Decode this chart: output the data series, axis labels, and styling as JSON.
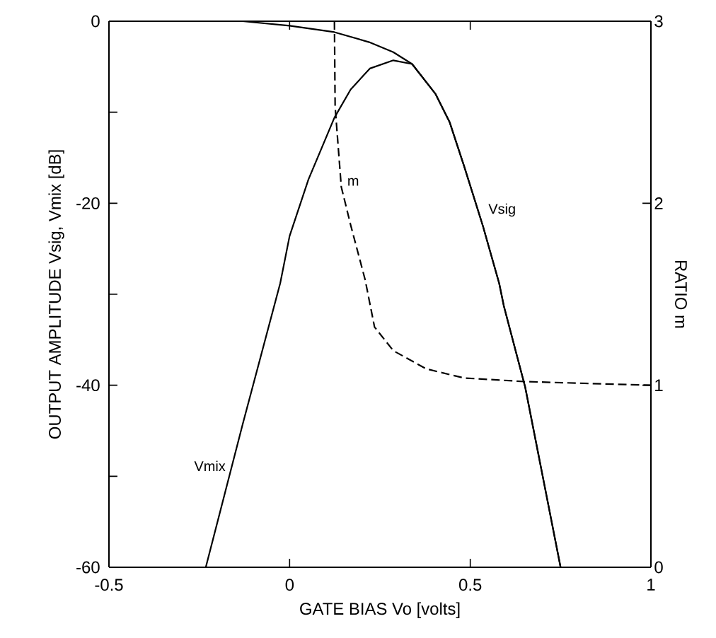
{
  "chart_data": {
    "type": "line",
    "xlabel": "GATE BIAS Vo [volts]",
    "ylabel": "OUTPUT AMPLITUDE Vsig, Vmix [dB]",
    "y2label": "RATIO m",
    "xlim": [
      -0.5,
      1
    ],
    "xticks": [
      -0.5,
      0,
      0.5,
      1
    ],
    "ylim": [
      -60,
      0
    ],
    "yticks": [
      0,
      {
        "value": -10,
        "label": null
      },
      -20,
      {
        "value": -30,
        "label": null
      },
      -40,
      {
        "value": -50,
        "label": null
      },
      -60
    ],
    "y2lim": [
      0,
      3
    ],
    "y2ticks": [
      0,
      1,
      2,
      3
    ],
    "series": [
      {
        "name": "Vsig",
        "color": "#000000",
        "line_style": "solid",
        "x": [
          -0.13,
          0,
          0.124,
          0.22,
          0.287,
          0.339,
          0.404,
          0.443,
          0.482,
          0.535,
          0.58,
          0.593,
          0.652,
          0.75
        ],
        "values": [
          0,
          -0.5,
          -1.2,
          -2.3,
          -3.4,
          -4.7,
          -8.0,
          -11.1,
          -15.8,
          -22.5,
          -28.8,
          -31.3,
          -40.2,
          -60
        ]
      },
      {
        "name": "Vmix",
        "color": "#000000",
        "line_style": "solid",
        "x": [
          -0.232,
          -0.13,
          -0.026,
          0,
          0.052,
          0.124,
          0.169,
          0.222,
          0.287,
          0.339,
          0.404,
          0.443,
          0.482,
          0.535,
          0.58,
          0.593,
          0.652,
          0.75
        ],
        "values": [
          -60,
          -44.3,
          -28.8,
          -23.6,
          -17.4,
          -10.6,
          -7.5,
          -5.2,
          -4.3,
          -4.7,
          -8.0,
          -11.1,
          -15.8,
          -22.5,
          -28.8,
          -31.3,
          -40.2,
          -60
        ]
      },
      {
        "name": "m",
        "color": "#000000",
        "line_style": "dashed",
        "axis": "y2",
        "x": [
          0.124,
          0.126,
          0.143,
          0.169,
          0.209,
          0.235,
          0.287,
          0.378,
          0.482,
          0.652,
          1.0
        ],
        "values": [
          3,
          2.53,
          2.09,
          1.88,
          1.58,
          1.32,
          1.19,
          1.09,
          1.04,
          1.02,
          1.0
        ]
      }
    ]
  }
}
